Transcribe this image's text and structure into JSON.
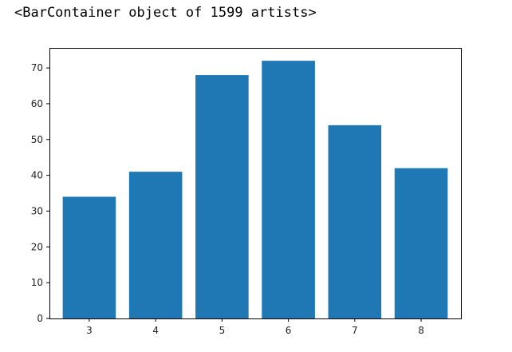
{
  "output_text": "<BarContainer object of 1599 artists>",
  "chart_data": {
    "type": "bar",
    "categories": [
      "3",
      "4",
      "5",
      "6",
      "7",
      "8"
    ],
    "x": [
      3,
      4,
      5,
      6,
      7,
      8
    ],
    "values": [
      34,
      41,
      68,
      72,
      54,
      42
    ],
    "title": "",
    "xlabel": "",
    "ylabel": "",
    "xlim": [
      2.4,
      8.6
    ],
    "ylim": [
      0,
      75.6
    ],
    "yticks": [
      0,
      10,
      20,
      30,
      40,
      50,
      60,
      70
    ],
    "grid": false,
    "bar_color": "#1f77b4"
  }
}
